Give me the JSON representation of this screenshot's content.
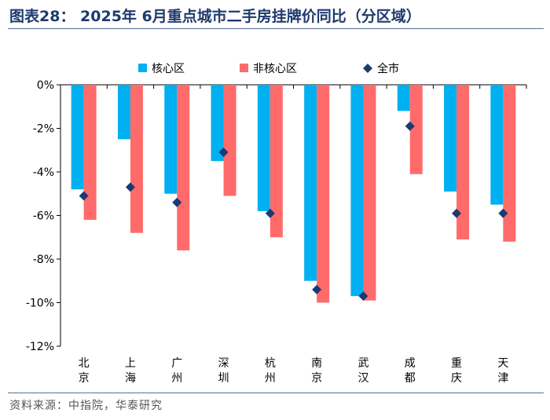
{
  "figure": {
    "title": "图表28：  2025年 6月重点城市二手房挂牌价同比（分区域）",
    "source": "资料来源：中指院，华泰研究"
  },
  "colors": {
    "core": "#00b0f0",
    "noncore": "#ff6b6b",
    "city": "#1a3a72",
    "frame": "#5a6f94"
  },
  "chart_data": {
    "type": "bar",
    "title": "2025年 6月重点城市二手房挂牌价同比（分区域）",
    "xlabel": "",
    "ylabel": "",
    "ylim": [
      -12,
      0
    ],
    "yticks": [
      0,
      -2,
      -4,
      -6,
      -8,
      -10,
      -12
    ],
    "yticklabels": [
      "0%",
      "-2%",
      "-4%",
      "-6%",
      "-8%",
      "-10%",
      "-12%"
    ],
    "categories": [
      "北京",
      "上海",
      "广州",
      "深圳",
      "杭州",
      "南京",
      "武汉",
      "成都",
      "重庆",
      "天津"
    ],
    "legend_position": "top-center",
    "series": [
      {
        "name": "核心区",
        "kind": "bar",
        "values": [
          -4.8,
          -2.5,
          -5.0,
          -3.5,
          -5.8,
          -9.0,
          -9.7,
          -1.2,
          -4.9,
          -5.5
        ]
      },
      {
        "name": "非核心区",
        "kind": "bar",
        "values": [
          -6.2,
          -6.8,
          -7.6,
          -5.1,
          -7.0,
          -10.0,
          -9.9,
          -4.1,
          -7.1,
          -7.2
        ]
      },
      {
        "name": "全市",
        "kind": "marker",
        "values": [
          -5.1,
          -4.7,
          -5.4,
          -3.1,
          -5.9,
          -9.4,
          -9.7,
          -1.9,
          -5.9,
          -5.9
        ]
      }
    ]
  }
}
